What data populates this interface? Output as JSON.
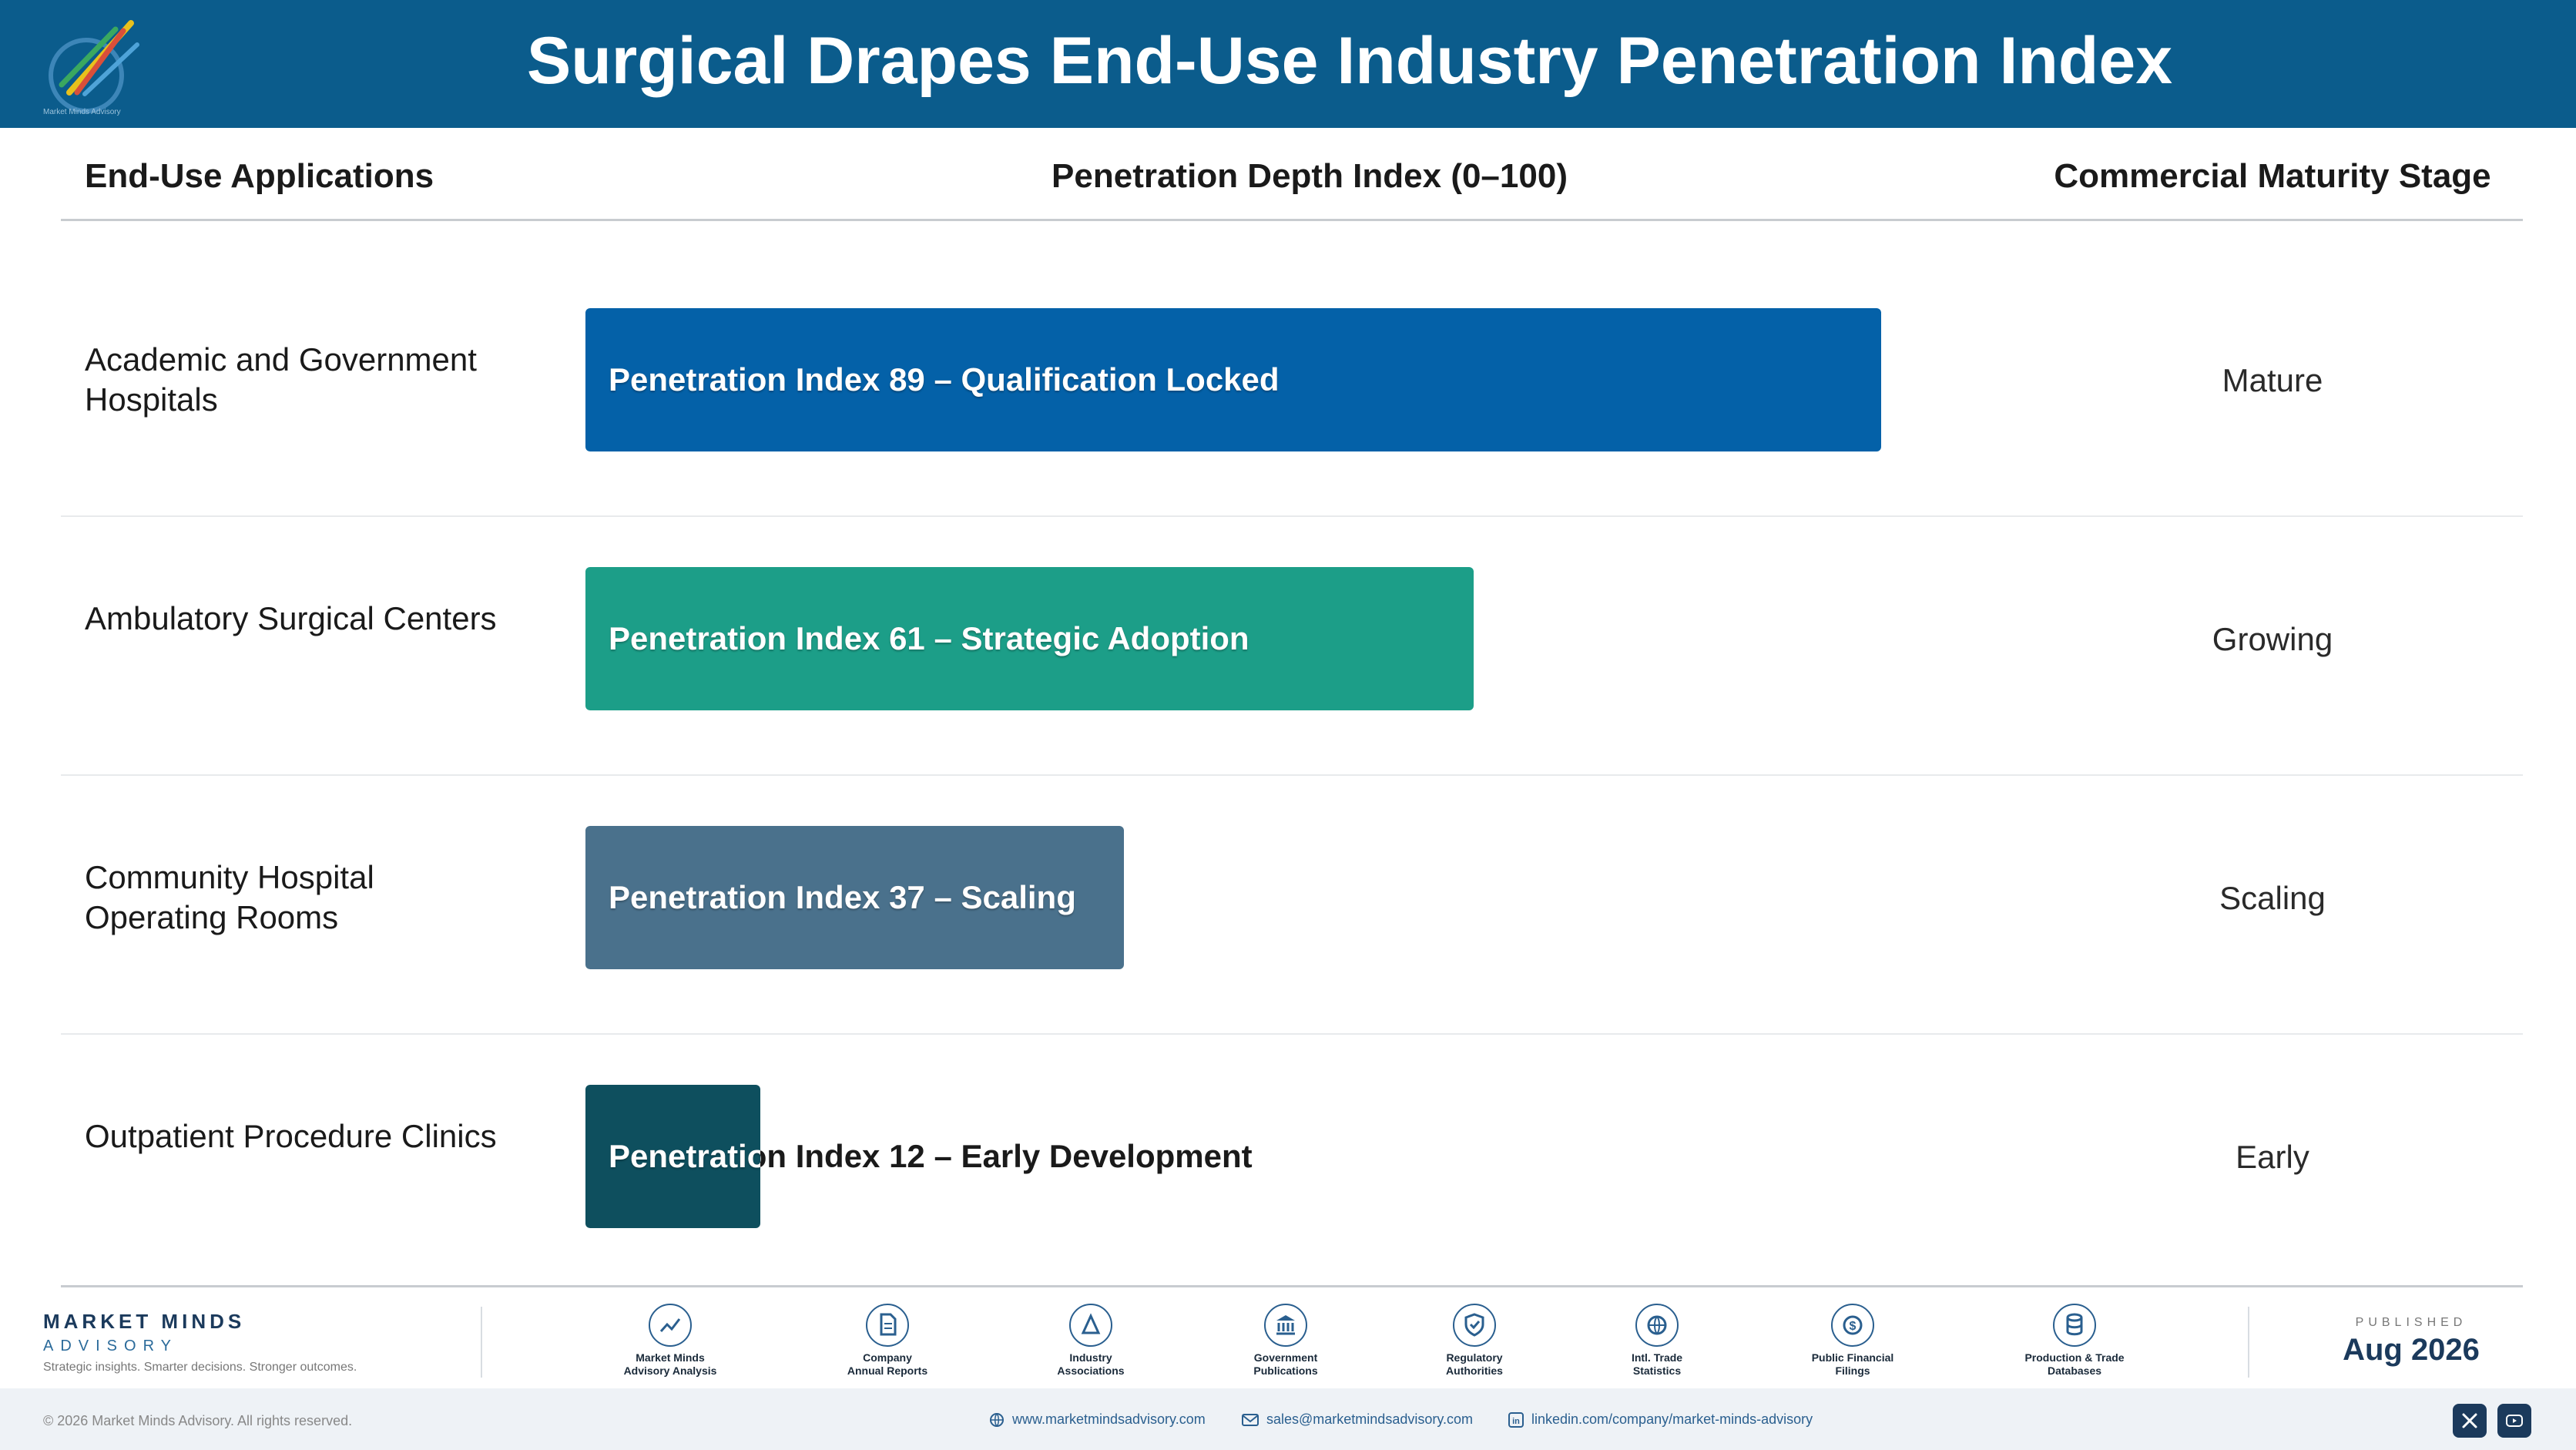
{
  "header": {
    "title": "Surgical Drapes End-Use Industry Penetration Index",
    "logo_caption": "Market Minds Advisory"
  },
  "columns": {
    "applications": "End-Use Applications",
    "penetration": "Penetration Depth Index (0–100)",
    "stage": "Commercial Maturity Stage"
  },
  "chart_data": {
    "type": "bar",
    "orientation": "horizontal",
    "title": "Surgical Drapes End-Use Industry Penetration Index",
    "xlabel": "Penetration Depth Index (0–100)",
    "xlim": [
      0,
      100
    ],
    "categories": [
      "Academic and Government Hospitals",
      "Ambulatory Surgical Centers",
      "Community Hospital Operating Rooms",
      "Outpatient Procedure Clinics"
    ],
    "values": [
      89,
      61,
      37,
      12
    ],
    "bar_labels": [
      "Penetration Index 89 – Qualification Locked",
      "Penetration Index 61 – Strategic Adoption",
      "Penetration Index 37 – Scaling",
      "Penetration Index 12 – Early Development"
    ],
    "stages": [
      "Mature",
      "Growing",
      "Scaling",
      "Early"
    ],
    "colors": [
      "#0461a8",
      "#1c9e88",
      "#4a718c",
      "#0e4f5e"
    ]
  },
  "footer": {
    "brand_name": "MARKET MINDS",
    "brand_sub": "ADVISORY",
    "tagline": "Strategic insights. Smarter decisions. Stronger outcomes.",
    "sources": [
      {
        "label": "Market Minds\nAdvisory Analysis",
        "icon": "chart-line-icon"
      },
      {
        "label": "Company\nAnnual Reports",
        "icon": "document-icon"
      },
      {
        "label": "Industry\nAssociations",
        "icon": "network-icon"
      },
      {
        "label": "Government\nPublications",
        "icon": "government-building-icon"
      },
      {
        "label": "Regulatory\nAuthorities",
        "icon": "shield-check-icon"
      },
      {
        "label": "Intl. Trade\nStatistics",
        "icon": "globe-icon"
      },
      {
        "label": "Public Financial\nFilings",
        "icon": "dollar-coin-icon"
      },
      {
        "label": "Production & Trade\nDatabases",
        "icon": "database-icon"
      }
    ],
    "published_label": "PUBLISHED",
    "published_value": "Aug 2026",
    "copyright": "© 2026 Market Minds Advisory. All rights reserved.",
    "website": "www.marketmindsadvisory.com",
    "email": "sales@marketmindsadvisory.com",
    "linkedin": "linkedin.com/company/market-minds-advisory"
  }
}
